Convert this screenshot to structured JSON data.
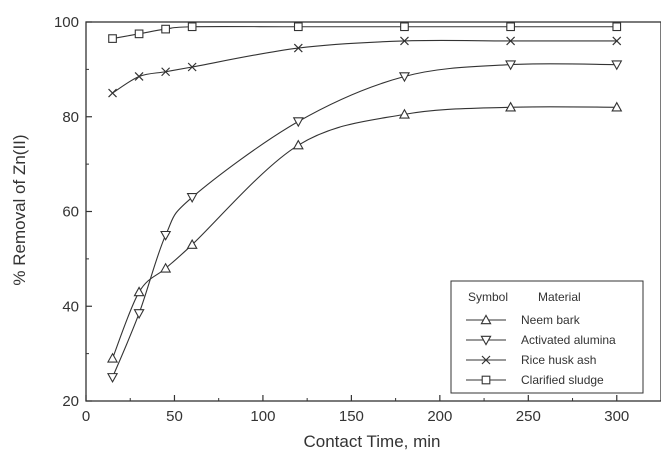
{
  "chart_data": {
    "type": "line",
    "title": "",
    "xlabel": "Contact Time, min",
    "ylabel": "% Removal of Zn(II)",
    "xlim": [
      0,
      325
    ],
    "ylim": [
      20,
      100
    ],
    "x_ticks": [
      0,
      50,
      100,
      150,
      200,
      250,
      300
    ],
    "y_ticks": [
      20,
      40,
      60,
      80,
      100
    ],
    "grid": false,
    "legend_position": "bottom-right",
    "legend": {
      "header_symbol": "Symbol",
      "header_material": "Material"
    },
    "x": [
      15,
      30,
      45,
      60,
      120,
      180,
      240,
      300
    ],
    "series": [
      {
        "name": "Neem bark",
        "marker": "triangle-up",
        "values": [
          29,
          43,
          48,
          53,
          74,
          80.5,
          82,
          82
        ]
      },
      {
        "name": "Activated alumina",
        "marker": "triangle-down",
        "values": [
          25,
          38.5,
          55,
          63,
          79,
          88.5,
          91,
          91
        ]
      },
      {
        "name": "Rice husk ash",
        "marker": "x",
        "values": [
          85,
          88.5,
          89.5,
          90.5,
          94.5,
          96,
          96,
          96
        ]
      },
      {
        "name": "Clarified sludge",
        "marker": "square",
        "values": [
          96.5,
          97.5,
          98.5,
          99,
          99,
          99,
          99,
          99
        ]
      }
    ]
  }
}
